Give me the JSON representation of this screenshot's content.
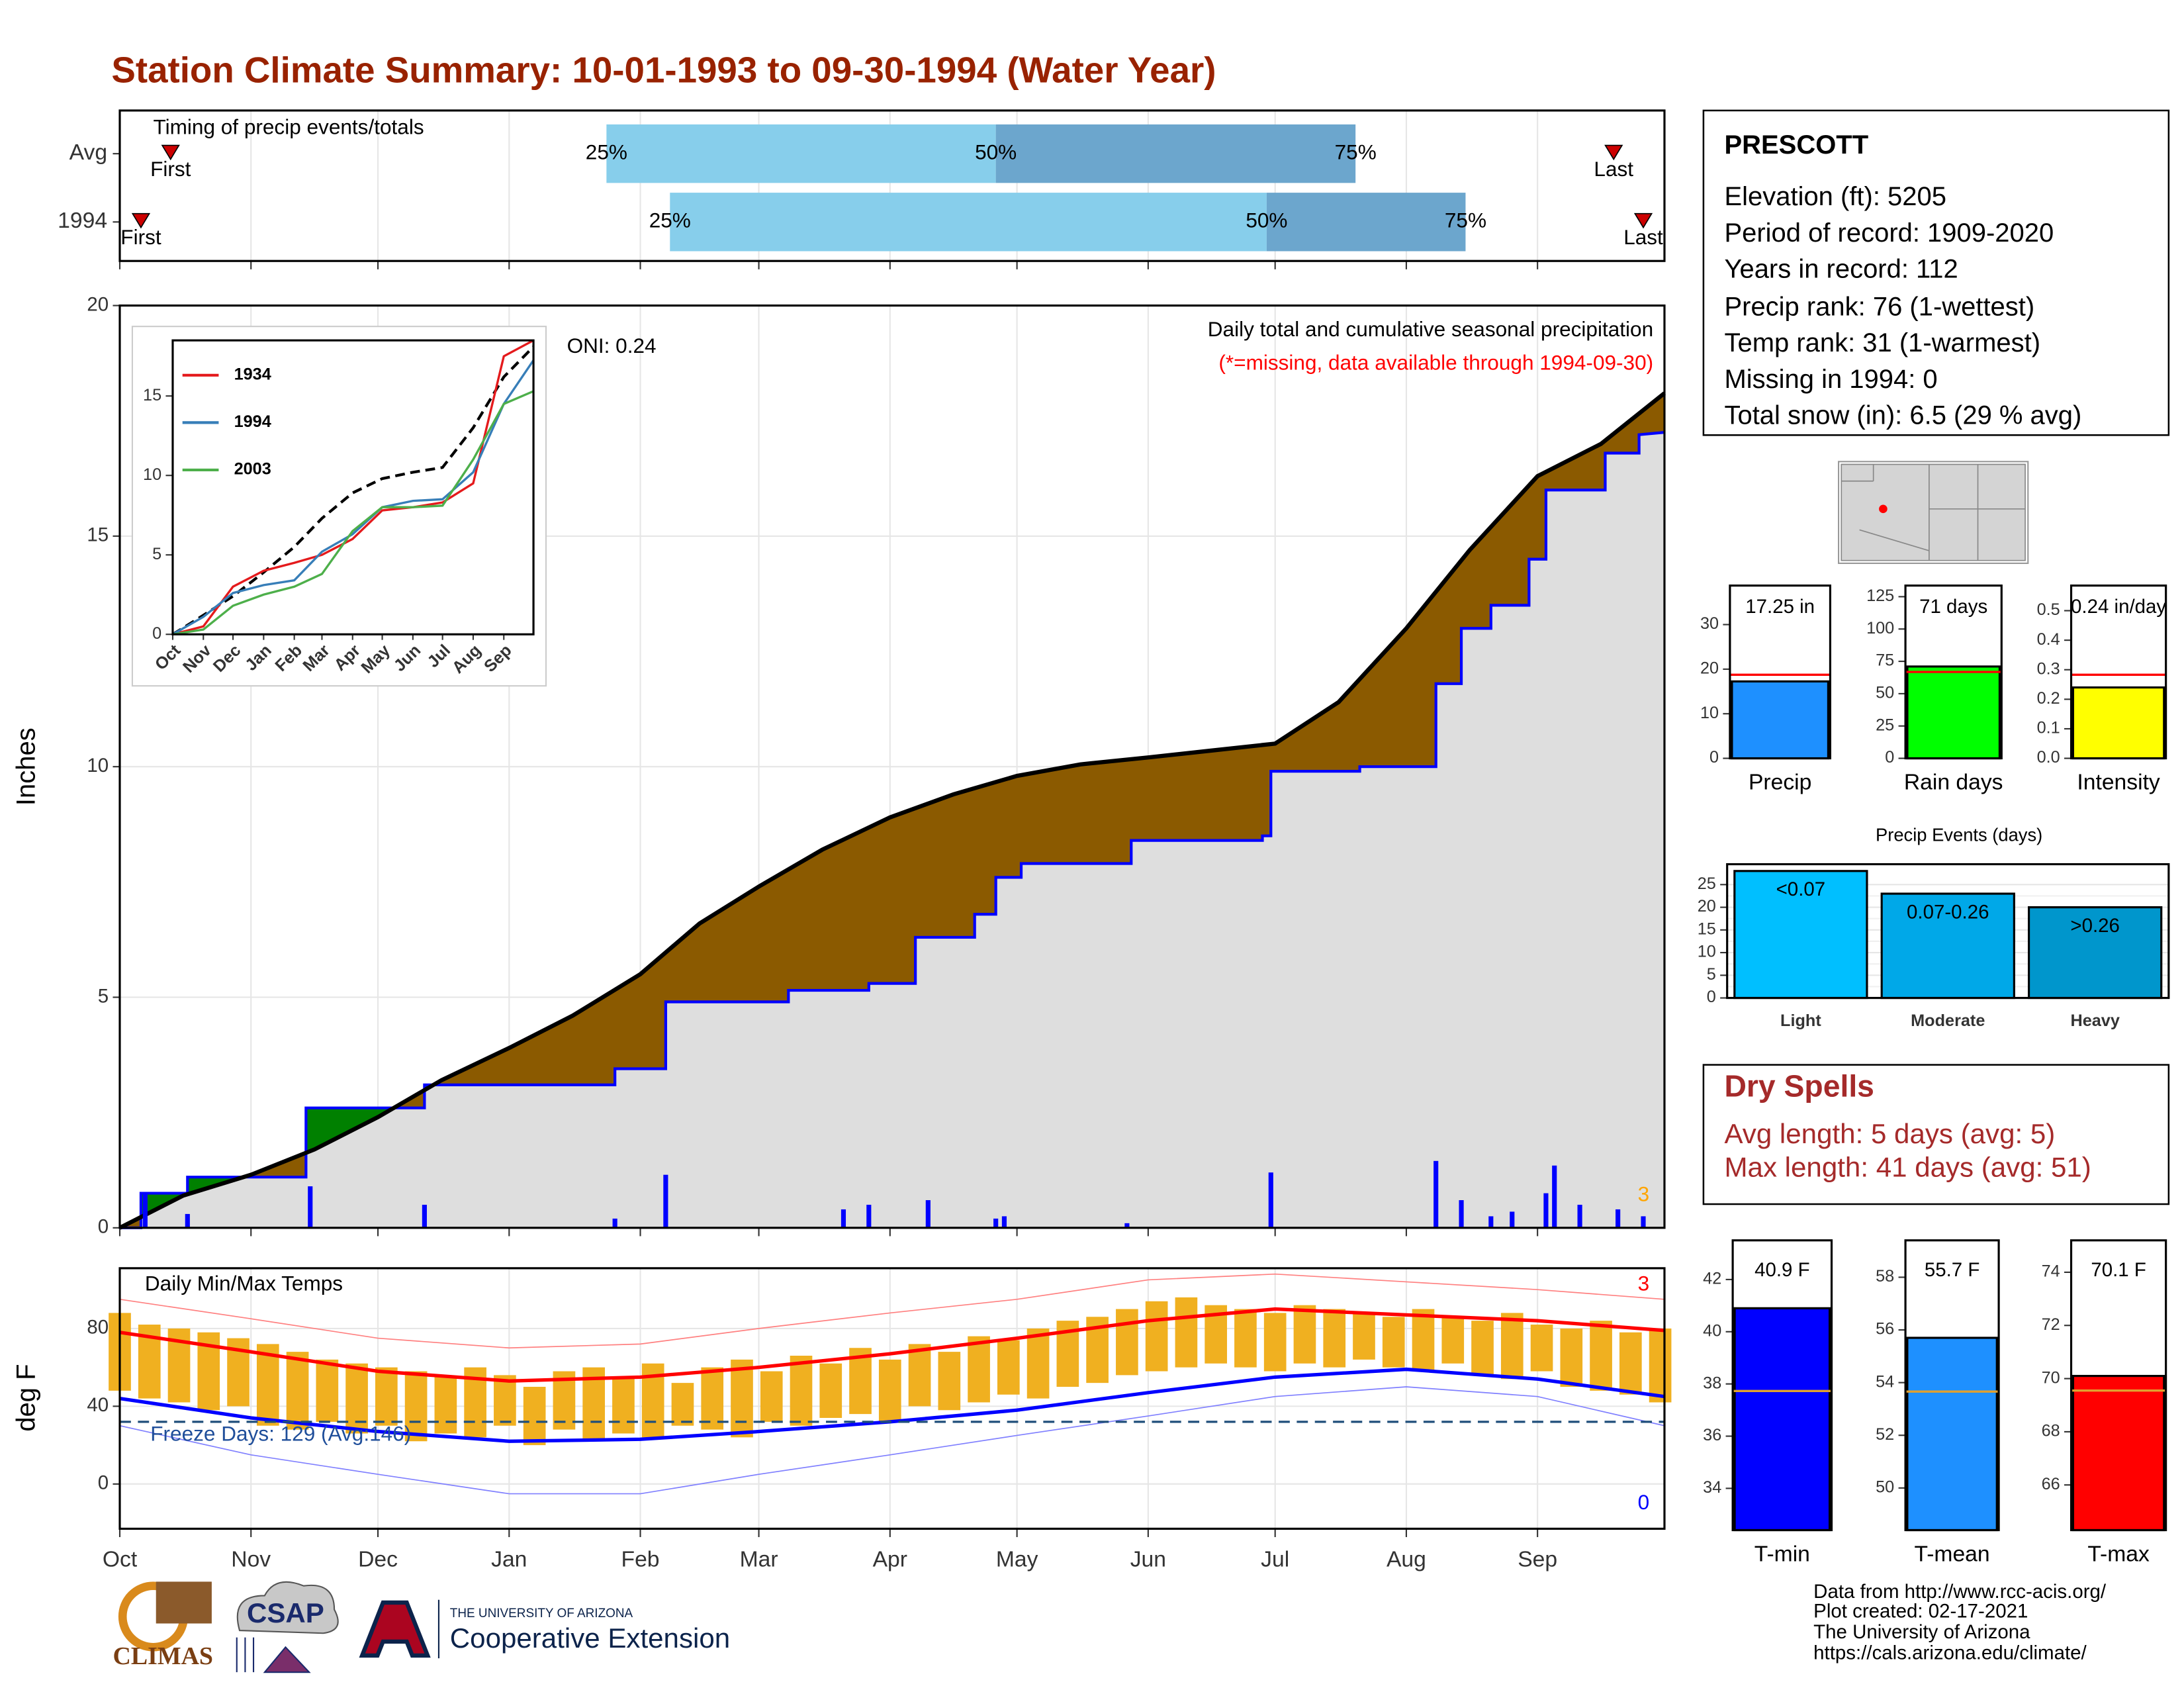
{
  "title": "Station Climate Summary: 10-01-1993 to 09-30-1994 (Water Year)",
  "station": {
    "name": "PRESCOTT",
    "lines": [
      "Elevation (ft): 5205",
      "Period of record: 1909-2020",
      "Years in record: 112",
      "Precip rank: 76 (1-wettest)",
      "Temp rank: 31 (1-warmest)",
      "Missing in 1994: 0",
      "Total snow (in): 6.5 (29 % avg)"
    ]
  },
  "dry_spells": {
    "title": "Dry Spells",
    "lines": [
      "Avg length: 5 days (avg: 5)",
      "Max length: 41 days (avg: 51)"
    ]
  },
  "footer": {
    "credits": [
      "Data from http://www.rcc-acis.org/",
      "Plot created: 02-17-2021",
      "The University of Arizona",
      "https://cals.arizona.edu/climate/"
    ],
    "logos": {
      "climas": "CLIMAS",
      "csap": "CSAP",
      "university": "THE UNIVERSITY OF ARIZONA",
      "unit": "Cooperative Extension"
    }
  },
  "chart_data": [
    {
      "type": "timing",
      "title": "Timing of precip events/totals",
      "categories": [
        "Avg",
        "1994"
      ],
      "series": [
        {
          "name": "First",
          "shape": "triangle",
          "color": "#cc0000",
          "values": [
            12,
            5
          ]
        },
        {
          "name": "25%",
          "shape": "bar",
          "values": [
            115,
            130
          ]
        },
        {
          "name": "50%",
          "shape": "bar",
          "values": [
            207,
            271
          ]
        },
        {
          "name": "75%",
          "shape": "bar",
          "values": [
            292,
            318
          ]
        },
        {
          "name": "Last",
          "shape": "triangle",
          "color": "#cc0000",
          "values": [
            353,
            360
          ]
        }
      ],
      "colors": [
        "#87ceeb",
        "#6ca6cd"
      ],
      "xlim": [
        0,
        365
      ],
      "xticks": [
        0,
        31,
        61,
        92,
        123,
        151,
        182,
        212,
        243,
        273,
        304,
        335
      ],
      "grid": true
    },
    {
      "type": "cumulative",
      "title": "Daily total and cumulative seasonal precipitation",
      "subtitle": "(*=missing, data available through 1994-09-30)",
      "ylabel": "Inches",
      "annotations": [
        {
          "text": "ONI: 0.24",
          "color": "#000000"
        },
        {
          "text": "3",
          "color": "#ffa500"
        }
      ],
      "xlim": [
        0,
        365
      ],
      "xticks": [
        0,
        31,
        61,
        92,
        123,
        151,
        182,
        212,
        243,
        273,
        304,
        335
      ],
      "ylim": [
        0,
        20
      ],
      "yticks": [
        0,
        5,
        10,
        15,
        20
      ],
      "grid": true,
      "fill_colors": [
        "#8b5a00",
        "#008000",
        "#dedede"
      ],
      "series": [
        {
          "color": "#000000",
          "x": [
            0,
            15,
            31,
            46,
            61,
            76,
            92,
            107,
            123,
            137,
            151,
            166,
            182,
            197,
            212,
            227,
            243,
            258,
            273,
            288,
            304,
            319,
            335,
            350,
            365
          ],
          "values": [
            0,
            0.7,
            1.15,
            1.7,
            2.4,
            3.2,
            3.9,
            4.6,
            5.5,
            6.6,
            7.4,
            8.2,
            8.9,
            9.4,
            9.8,
            10.05,
            10.2,
            10.35,
            10.5,
            11.4,
            13.0,
            14.7,
            16.3,
            17.0,
            18.1
          ]
        },
        {
          "color": "#0000ff",
          "x": [
            0,
            5,
            5,
            16,
            16,
            44,
            44,
            72,
            72,
            117,
            117,
            129,
            129,
            158,
            158,
            177,
            177,
            188,
            188,
            202,
            202,
            207,
            207,
            213,
            213,
            239,
            239,
            270,
            270,
            272,
            272,
            293,
            293,
            311,
            311,
            317,
            317,
            324,
            324,
            333,
            333,
            337,
            337,
            351,
            351,
            359,
            359,
            365
          ],
          "values": [
            0,
            0,
            0.75,
            0.75,
            1.1,
            1.1,
            2.6,
            2.6,
            3.1,
            3.1,
            3.45,
            3.45,
            4.9,
            4.9,
            5.15,
            5.15,
            5.3,
            5.3,
            6.3,
            6.3,
            6.8,
            6.8,
            7.6,
            7.6,
            7.9,
            7.9,
            8.4,
            8.4,
            8.5,
            8.5,
            9.9,
            9.9,
            10.0,
            10.0,
            11.8,
            11.8,
            13.0,
            13.0,
            13.5,
            13.5,
            14.5,
            14.5,
            16.0,
            16.0,
            16.8,
            16.8,
            17.2,
            17.25
          ]
        },
        {
          "color": "#0000ff",
          "x": [
            6,
            16,
            45,
            72,
            117,
            129,
            171,
            177,
            191,
            207,
            209,
            238,
            272,
            311,
            317,
            324,
            329,
            337,
            339,
            345,
            354,
            360
          ],
          "values": [
            0.75,
            0.3,
            0.9,
            0.5,
            0.2,
            1.15,
            0.4,
            0.5,
            0.6,
            0.2,
            0.25,
            0.1,
            1.2,
            1.45,
            0.6,
            0.25,
            0.35,
            0.75,
            1.35,
            0.5,
            0.4,
            0.25
          ]
        }
      ]
    },
    {
      "type": "line",
      "xlim": [
        0,
        365
      ],
      "xticks": [
        {
          "value": 0,
          "label": "Oct"
        },
        {
          "value": 31,
          "label": "Nov"
        },
        {
          "value": 61,
          "label": "Dec"
        },
        {
          "value": 92,
          "label": "Jan"
        },
        {
          "value": 123,
          "label": "Feb"
        },
        {
          "value": 151,
          "label": "Mar"
        },
        {
          "value": 182,
          "label": "Apr"
        },
        {
          "value": 212,
          "label": "May"
        },
        {
          "value": 243,
          "label": "Jun"
        },
        {
          "value": 273,
          "label": "Jul"
        },
        {
          "value": 304,
          "label": "Aug"
        },
        {
          "value": 335,
          "label": "Sep"
        }
      ],
      "ylim": [
        0,
        18.5
      ],
      "yticks": [
        0,
        5,
        10,
        15
      ],
      "series": [
        {
          "color": "#000000",
          "dash": true,
          "x": [
            0,
            31,
            61,
            92,
            123,
            151,
            182,
            212,
            243,
            273,
            304,
            335,
            365
          ],
          "values": [
            0,
            1.2,
            2.4,
            3.9,
            5.5,
            7.3,
            8.9,
            9.8,
            10.2,
            10.5,
            13.0,
            16.2,
            18.1
          ]
        },
        {
          "name": "1934",
          "color": "#e41a1c",
          "x": [
            0,
            31,
            61,
            92,
            123,
            151,
            182,
            212,
            243,
            273,
            304,
            335,
            365
          ],
          "values": [
            0,
            0.5,
            3.0,
            4.0,
            4.5,
            5.0,
            6.0,
            7.8,
            8.0,
            8.3,
            9.5,
            17.5,
            18.5
          ]
        },
        {
          "name": "1994",
          "color": "#377eb8",
          "x": [
            0,
            31,
            61,
            92,
            123,
            151,
            182,
            212,
            243,
            273,
            304,
            335,
            365
          ],
          "values": [
            0,
            1.1,
            2.6,
            3.1,
            3.4,
            5.2,
            6.3,
            8.0,
            8.4,
            8.5,
            10.2,
            14.5,
            17.25
          ]
        },
        {
          "name": "2003",
          "color": "#4daf4a",
          "x": [
            0,
            31,
            61,
            92,
            123,
            151,
            182,
            212,
            243,
            273,
            304,
            335,
            365
          ],
          "values": [
            0,
            0.3,
            1.8,
            2.5,
            3.0,
            3.8,
            6.5,
            8.0,
            8.0,
            8.1,
            11.0,
            14.5,
            15.3
          ]
        }
      ]
    },
    {
      "type": "bar",
      "categories": [
        "Precip"
      ],
      "values": [
        17.25
      ],
      "value_labels": [
        "17.25 in"
      ],
      "color": "#1e90ff",
      "ylim": [
        0,
        38.75
      ],
      "yticks": [
        0,
        10,
        20,
        30
      ],
      "reference": 18.75,
      "reference_color": "#ff0000"
    },
    {
      "type": "bar",
      "categories": [
        "Rain days"
      ],
      "values": [
        71
      ],
      "value_labels": [
        "71 days"
      ],
      "color": "#00ff00",
      "ylim": [
        0,
        133.6
      ],
      "yticks": [
        0,
        25,
        50,
        75,
        100,
        125
      ],
      "reference": 66.8,
      "reference_color": "#ff0000"
    },
    {
      "type": "bar",
      "categories": [
        "Intensity"
      ],
      "values": [
        0.24
      ],
      "value_labels": [
        "0.24 in/day"
      ],
      "color": "#ffff00",
      "ylim": [
        0,
        0.585
      ],
      "yticks": [
        {
          "value": 0,
          "label": "0.0"
        },
        0.1,
        0.2,
        0.3,
        0.4,
        0.5
      ],
      "reference": 0.283,
      "reference_color": "#ff0000"
    },
    {
      "type": "bar",
      "title": "Precip Events (days)",
      "categories": [
        "Light",
        "Moderate",
        "Heavy"
      ],
      "bin_labels": [
        "<0.07",
        "0.07-0.26",
        ">0.26"
      ],
      "values": [
        28,
        23,
        20
      ],
      "colors": [
        "#00bfff",
        "#00a8e8",
        "#0096cc"
      ],
      "ylim": [
        0,
        29.5
      ],
      "yticks": [
        0,
        5,
        10,
        15,
        20,
        25
      ],
      "grid": true
    },
    {
      "type": "temperature",
      "title": "Daily Min/Max Temps",
      "ylabel": "deg F",
      "annotations": [
        {
          "text": "Freeze Days: 129 (Avg:146)",
          "color": "#1f4e9a"
        },
        {
          "text": "3",
          "color": "#ff0000"
        },
        {
          "text": "0",
          "color": "#0000ff"
        }
      ],
      "xlim": [
        0,
        365
      ],
      "xticks": [
        {
          "value": 0,
          "label": "Oct"
        },
        {
          "value": 31,
          "label": "Nov"
        },
        {
          "value": 61,
          "label": "Dec"
        },
        {
          "value": 92,
          "label": "Jan"
        },
        {
          "value": 123,
          "label": "Feb"
        },
        {
          "value": 151,
          "label": "Mar"
        },
        {
          "value": 182,
          "label": "Apr"
        },
        {
          "value": 212,
          "label": "May"
        },
        {
          "value": 243,
          "label": "Jun"
        },
        {
          "value": 273,
          "label": "Jul"
        },
        {
          "value": 304,
          "label": "Aug"
        },
        {
          "value": 335,
          "label": "Sep"
        }
      ],
      "ylim": [
        -23,
        111
      ],
      "yticks": [
        0,
        40,
        80
      ],
      "grid": true,
      "freeze_line": 32,
      "freeze_color": "#1f4e7a",
      "series": [
        {
          "color": "#ff8080",
          "width": 0.8,
          "x": [
            0,
            31,
            61,
            92,
            123,
            151,
            182,
            212,
            243,
            273,
            304,
            335,
            365
          ],
          "values": [
            95,
            85,
            75,
            70,
            72,
            80,
            88,
            95,
            105,
            108,
            104,
            100,
            95
          ]
        },
        {
          "color": "#8080ff",
          "width": 0.8,
          "x": [
            0,
            31,
            61,
            92,
            123,
            151,
            182,
            212,
            243,
            273,
            304,
            335,
            365
          ],
          "values": [
            30,
            15,
            5,
            -5,
            -5,
            5,
            15,
            25,
            35,
            45,
            50,
            45,
            30
          ]
        },
        {
          "color": "#ff0000",
          "width": 2.5,
          "x": [
            0,
            31,
            61,
            92,
            123,
            151,
            182,
            212,
            243,
            273,
            304,
            335,
            365
          ],
          "values": [
            78,
            68,
            58,
            53,
            55,
            60,
            67,
            75,
            84,
            90,
            87,
            84,
            79
          ]
        },
        {
          "color": "#0000ff",
          "width": 2.5,
          "x": [
            0,
            31,
            61,
            92,
            123,
            151,
            182,
            212,
            243,
            273,
            304,
            335,
            365
          ],
          "values": [
            44,
            34,
            27,
            22,
            23,
            27,
            32,
            38,
            47,
            55,
            59,
            54,
            45
          ]
        }
      ],
      "ranges": {
        "color": "#f0b020",
        "x": [
          0,
          7,
          14,
          21,
          28,
          35,
          42,
          49,
          56,
          63,
          70,
          77,
          84,
          91,
          98,
          105,
          112,
          119,
          126,
          133,
          140,
          147,
          154,
          161,
          168,
          175,
          182,
          189,
          196,
          203,
          210,
          217,
          224,
          231,
          238,
          245,
          252,
          259,
          266,
          273,
          280,
          287,
          294,
          301,
          308,
          315,
          322,
          329,
          336,
          343,
          350,
          357,
          364
        ],
        "low": [
          48,
          44,
          42,
          38,
          40,
          30,
          28,
          32,
          26,
          30,
          22,
          26,
          24,
          30,
          20,
          28,
          22,
          26,
          24,
          30,
          28,
          24,
          32,
          30,
          34,
          36,
          32,
          40,
          38,
          42,
          46,
          44,
          50,
          52,
          56,
          58,
          60,
          62,
          60,
          58,
          62,
          60,
          64,
          60,
          58,
          62,
          56,
          54,
          58,
          50,
          48,
          46,
          42
        ],
        "high": [
          88,
          82,
          80,
          78,
          75,
          72,
          68,
          64,
          62,
          60,
          58,
          55,
          60,
          56,
          50,
          58,
          60,
          55,
          62,
          52,
          60,
          64,
          58,
          66,
          62,
          70,
          64,
          72,
          68,
          76,
          74,
          80,
          84,
          86,
          90,
          94,
          96,
          92,
          90,
          88,
          92,
          90,
          88,
          86,
          90,
          86,
          84,
          88,
          82,
          80,
          84,
          78,
          80
        ]
      }
    },
    {
      "type": "bar",
      "categories": [
        "T-min"
      ],
      "values": [
        40.9
      ],
      "value_labels": [
        "40.9 F"
      ],
      "color": "#0000ff",
      "ylim": [
        32.4,
        43.5
      ],
      "yticks": [
        34,
        36,
        38,
        40,
        42
      ],
      "reference": 37.73,
      "reference_color": "#e0a030"
    },
    {
      "type": "bar",
      "categories": [
        "T-mean"
      ],
      "values": [
        55.7
      ],
      "value_labels": [
        "55.7 F"
      ],
      "color": "#1e90ff",
      "ylim": [
        48.4,
        59.4
      ],
      "yticks": [
        50,
        52,
        54,
        56,
        58
      ],
      "reference": 53.66,
      "reference_color": "#e0a030"
    },
    {
      "type": "bar",
      "categories": [
        "T-max"
      ],
      "values": [
        70.1
      ],
      "value_labels": [
        "70.1 F"
      ],
      "color": "#ff0000",
      "ylim": [
        64.3,
        75.2
      ],
      "yticks": [
        66,
        68,
        70,
        72,
        74
      ],
      "reference": 69.55,
      "reference_color": "#e0a030"
    }
  ]
}
